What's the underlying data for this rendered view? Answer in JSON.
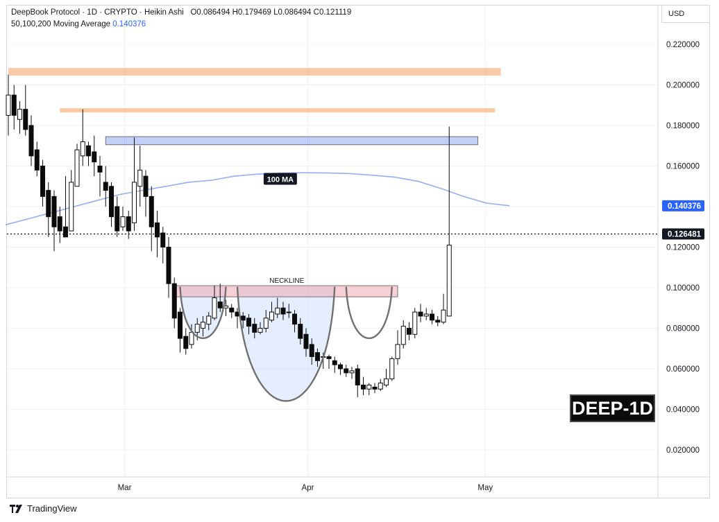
{
  "header": {
    "symbol_line": "DeepBook Protocol · 1D · CRYPTO · Heikin Ashi",
    "o_label": "O",
    "o_value": "0.086494",
    "h_label": "H",
    "h_value": "0.179469",
    "l_label": "L",
    "l_value": "0.086494",
    "c_label": "C",
    "c_value": "0.121119",
    "ma_label": "50,100,200 Moving Average",
    "ma_value": "0.140376"
  },
  "currency_button": "USD",
  "footer": {
    "brand": "TradingView",
    "logo_icon": "tradingview-logo-icon"
  },
  "badge_text": "DEEP-1D",
  "chart_data": {
    "type": "candlestick",
    "style": "Heikin Ashi",
    "interval": "1D",
    "ylim": [
      0,
      0.225
    ],
    "yticks": [
      "0.220000",
      "0.200000",
      "0.180000",
      "0.160000",
      "0.140000",
      "0.120000",
      "0.100000",
      "0.080000",
      "0.060000",
      "0.040000",
      "0.020000"
    ],
    "yticks_values": [
      0.22,
      0.2,
      0.18,
      0.16,
      0.14,
      0.12,
      0.1,
      0.08,
      0.06,
      0.04,
      0.02
    ],
    "xticks": [
      "Mar",
      "Apr",
      "May"
    ],
    "xticks_index": [
      22,
      54,
      85
    ],
    "grid": true,
    "last_price": {
      "value": 0.126481,
      "label": "0.126481"
    },
    "ma_price": {
      "value": 0.140376,
      "label": "0.140376",
      "color": "#2962ff"
    },
    "colors": {
      "up": "#ffffff",
      "down": "#0b0b0b",
      "ma": "#92aef5",
      "resistance": "#fbb88a",
      "zone_blue": "#8fa8ef",
      "zone_red": "#f1a9b4",
      "pattern": "#707070",
      "cup_fill": "#cfe0ff"
    },
    "candles": [
      [
        0.185,
        0.195,
        0.175,
        0.205
      ],
      [
        0.195,
        0.185,
        0.178,
        0.2
      ],
      [
        0.183,
        0.188,
        0.176,
        0.192
      ],
      [
        0.188,
        0.178,
        0.175,
        0.2
      ],
      [
        0.18,
        0.165,
        0.16,
        0.185
      ],
      [
        0.168,
        0.158,
        0.155,
        0.172
      ],
      [
        0.16,
        0.145,
        0.14,
        0.163
      ],
      [
        0.148,
        0.135,
        0.125,
        0.152
      ],
      [
        0.145,
        0.13,
        0.118,
        0.148
      ],
      [
        0.135,
        0.128,
        0.122,
        0.14
      ],
      [
        0.13,
        0.125,
        0.125,
        0.155
      ],
      [
        0.128,
        0.152,
        0.128,
        0.158
      ],
      [
        0.15,
        0.168,
        0.15,
        0.171
      ],
      [
        0.165,
        0.172,
        0.16,
        0.188
      ],
      [
        0.17,
        0.165,
        0.16,
        0.172
      ],
      [
        0.167,
        0.162,
        0.155,
        0.175
      ],
      [
        0.16,
        0.157,
        0.145,
        0.165
      ],
      [
        0.152,
        0.148,
        0.14,
        0.16
      ],
      [
        0.15,
        0.135,
        0.13,
        0.152
      ],
      [
        0.14,
        0.128,
        0.125,
        0.145
      ],
      [
        0.13,
        0.135,
        0.128,
        0.14
      ],
      [
        0.135,
        0.128,
        0.124,
        0.138
      ],
      [
        0.132,
        0.152,
        0.128,
        0.174
      ],
      [
        0.15,
        0.158,
        0.14,
        0.17
      ],
      [
        0.155,
        0.145,
        0.135,
        0.158
      ],
      [
        0.145,
        0.13,
        0.118,
        0.15
      ],
      [
        0.132,
        0.125,
        0.115,
        0.138
      ],
      [
        0.127,
        0.12,
        0.112,
        0.13
      ],
      [
        0.12,
        0.102,
        0.095,
        0.125
      ],
      [
        0.102,
        0.085,
        0.08,
        0.105
      ],
      [
        0.088,
        0.075,
        0.068,
        0.09
      ],
      [
        0.076,
        0.07,
        0.067,
        0.08
      ],
      [
        0.072,
        0.078,
        0.07,
        0.082
      ],
      [
        0.078,
        0.082,
        0.074,
        0.085
      ],
      [
        0.08,
        0.083,
        0.076,
        0.086
      ],
      [
        0.082,
        0.086,
        0.079,
        0.088
      ],
      [
        0.085,
        0.095,
        0.084,
        0.101
      ],
      [
        0.093,
        0.09,
        0.088,
        0.102
      ],
      [
        0.09,
        0.091,
        0.086,
        0.094
      ],
      [
        0.09,
        0.088,
        0.085,
        0.092
      ],
      [
        0.088,
        0.086,
        0.08,
        0.09
      ],
      [
        0.086,
        0.084,
        0.08,
        0.088
      ],
      [
        0.085,
        0.081,
        0.077,
        0.087
      ],
      [
        0.082,
        0.078,
        0.075,
        0.085
      ],
      [
        0.078,
        0.08,
        0.077,
        0.083
      ],
      [
        0.08,
        0.085,
        0.078,
        0.089
      ],
      [
        0.084,
        0.088,
        0.083,
        0.093
      ],
      [
        0.087,
        0.09,
        0.085,
        0.095
      ],
      [
        0.09,
        0.087,
        0.084,
        0.093
      ],
      [
        0.088,
        0.088,
        0.085,
        0.092
      ],
      [
        0.087,
        0.082,
        0.078,
        0.089
      ],
      [
        0.082,
        0.075,
        0.072,
        0.085
      ],
      [
        0.077,
        0.07,
        0.066,
        0.08
      ],
      [
        0.072,
        0.066,
        0.062,
        0.075
      ],
      [
        0.068,
        0.064,
        0.061,
        0.07
      ],
      [
        0.066,
        0.066,
        0.06,
        0.068
      ],
      [
        0.066,
        0.065,
        0.06,
        0.067
      ],
      [
        0.064,
        0.062,
        0.058,
        0.066
      ],
      [
        0.062,
        0.06,
        0.057,
        0.063
      ],
      [
        0.06,
        0.058,
        0.056,
        0.062
      ],
      [
        0.058,
        0.059,
        0.055,
        0.061
      ],
      [
        0.06,
        0.052,
        0.046,
        0.062
      ],
      [
        0.052,
        0.05,
        0.047,
        0.056
      ],
      [
        0.05,
        0.052,
        0.047,
        0.053
      ],
      [
        0.051,
        0.05,
        0.048,
        0.053
      ],
      [
        0.05,
        0.053,
        0.049,
        0.055
      ],
      [
        0.052,
        0.055,
        0.051,
        0.06
      ],
      [
        0.055,
        0.065,
        0.054,
        0.066
      ],
      [
        0.065,
        0.072,
        0.062,
        0.079
      ],
      [
        0.072,
        0.081,
        0.07,
        0.084
      ],
      [
        0.08,
        0.077,
        0.074,
        0.083
      ],
      [
        0.077,
        0.088,
        0.075,
        0.09
      ],
      [
        0.088,
        0.086,
        0.083,
        0.092
      ],
      [
        0.086,
        0.087,
        0.084,
        0.09
      ],
      [
        0.087,
        0.084,
        0.082,
        0.089
      ],
      [
        0.084,
        0.083,
        0.081,
        0.086
      ],
      [
        0.083,
        0.089,
        0.082,
        0.097
      ],
      [
        0.086,
        0.121,
        0.086,
        0.1795
      ]
    ],
    "ma100": [
      0.131,
      0.134,
      0.137,
      0.14,
      0.143,
      0.146,
      0.148,
      0.15,
      0.152,
      0.153,
      0.155,
      0.156,
      0.1565,
      0.1567,
      0.1566,
      0.1563,
      0.1555,
      0.1545,
      0.1525,
      0.149,
      0.145,
      0.1417,
      0.1404
    ],
    "ma100_step": 4,
    "last_price_line_from_index": 0,
    "levels": [
      {
        "name": "resistance-upper",
        "value": 0.2065,
        "from_index": 0,
        "to_index": 86
      },
      {
        "name": "resistance-lower",
        "value": 0.1875,
        "from_index": 9,
        "to_index": 85
      }
    ],
    "zones": [
      {
        "name": "supply-zone",
        "top": 0.1745,
        "bottom": 0.1705,
        "from_index": 17,
        "to_index": 82
      },
      {
        "name": "neckline-zone",
        "top": 0.101,
        "bottom": 0.0955,
        "from_index": 29,
        "to_index": 68
      }
    ],
    "annotations": [
      {
        "text": "100 MA",
        "value": 0.1535,
        "index": 47.5
      },
      {
        "text": "NECKLINE",
        "value": 0.103,
        "index": 49
      }
    ],
    "pattern": {
      "name": "inverse head and shoulders",
      "left_shoulder": {
        "from_index": 30,
        "to_index": 38,
        "bottom": 0.075,
        "top": 0.1005
      },
      "head": {
        "from_index": 40,
        "to_index": 57,
        "bottom": 0.044,
        "top": 0.1005
      },
      "right_shoulder": {
        "from_index": 59,
        "to_index": 67,
        "bottom": 0.075,
        "top": 0.1005
      }
    }
  }
}
